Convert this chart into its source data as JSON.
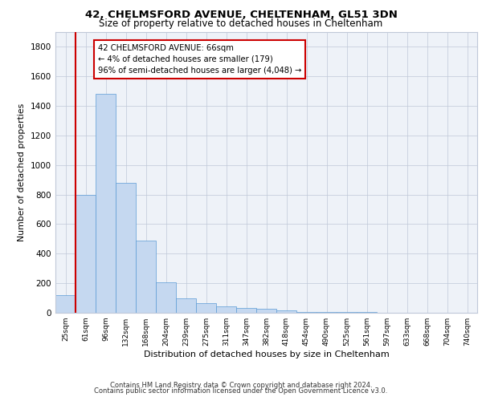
{
  "title1": "42, CHELMSFORD AVENUE, CHELTENHAM, GL51 3DN",
  "title2": "Size of property relative to detached houses in Cheltenham",
  "xlabel": "Distribution of detached houses by size in Cheltenham",
  "ylabel": "Number of detached properties",
  "categories": [
    "25sqm",
    "61sqm",
    "96sqm",
    "132sqm",
    "168sqm",
    "204sqm",
    "239sqm",
    "275sqm",
    "311sqm",
    "347sqm",
    "382sqm",
    "418sqm",
    "454sqm",
    "490sqm",
    "525sqm",
    "561sqm",
    "597sqm",
    "633sqm",
    "668sqm",
    "704sqm",
    "740sqm"
  ],
  "values": [
    120,
    800,
    1480,
    880,
    490,
    205,
    100,
    65,
    45,
    30,
    28,
    18,
    8,
    5,
    4,
    3,
    2,
    2,
    1,
    1,
    1
  ],
  "bar_color": "#c5d8f0",
  "bar_edge_color": "#5b9bd5",
  "annotation_text": "42 CHELMSFORD AVENUE: 66sqm\n← 4% of detached houses are smaller (179)\n96% of semi-detached houses are larger (4,048) →",
  "annotation_box_color": "#ffffff",
  "annotation_box_edge": "#cc0000",
  "red_line_color": "#cc0000",
  "grid_color": "#c0c8d8",
  "background_color": "#eef2f8",
  "ylim": [
    0,
    1900
  ],
  "yticks": [
    0,
    200,
    400,
    600,
    800,
    1000,
    1200,
    1400,
    1600,
    1800
  ],
  "footer1": "Contains HM Land Registry data © Crown copyright and database right 2024.",
  "footer2": "Contains public sector information licensed under the Open Government Licence v3.0."
}
